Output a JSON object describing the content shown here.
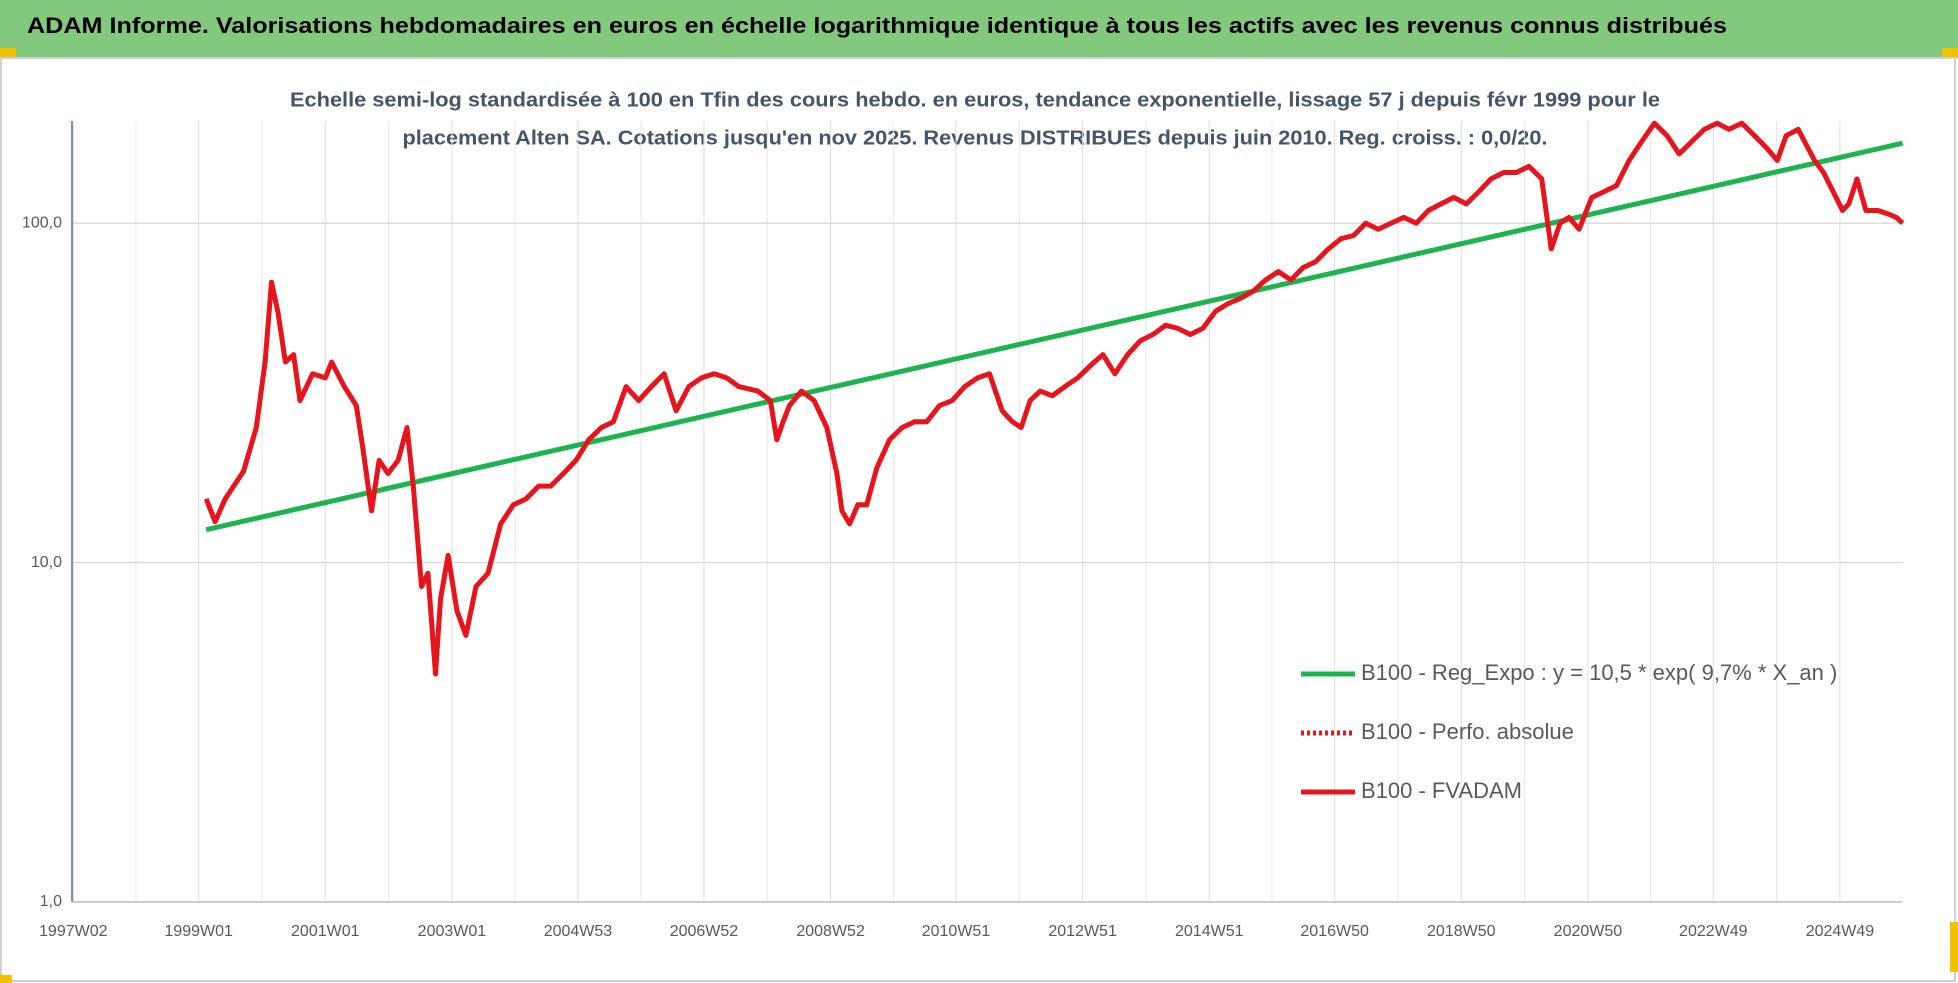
{
  "chart_data": {
    "type": "line",
    "title": "ADAM Informe. Valorisations hebdomadaires en euros en échelle logarithmique identique à tous les actifs avec les revenus connus distribués",
    "subtitle": [
      "Echelle semi-log standardisée à 100 en Tfin des cours hebdo. en euros, tendance exponentielle, lissage 57 j depuis févr 1999 pour le",
      "placement Alten SA.  Cotations jusqu'en nov 2025. Revenus DISTRIBUES depuis juin 2010. Reg. croiss. : 0,0/20."
    ],
    "log_y": true,
    "grid": true,
    "legend": "right",
    "xlim": [
      1997.0,
      2025.9
    ],
    "xticks": [
      {
        "value": 1997.02,
        "label": "1997W02"
      },
      {
        "value": 1999.0,
        "label": "1999W01"
      },
      {
        "value": 2001.0,
        "label": "2001W01"
      },
      {
        "value": 2003.0,
        "label": "2003W01"
      },
      {
        "value": 2004.99,
        "label": "2004W53"
      },
      {
        "value": 2006.98,
        "label": "2006W52"
      },
      {
        "value": 2008.98,
        "label": "2008W52"
      },
      {
        "value": 2010.96,
        "label": "2010W51"
      },
      {
        "value": 2012.96,
        "label": "2012W51"
      },
      {
        "value": 2014.96,
        "label": "2014W51"
      },
      {
        "value": 2016.94,
        "label": "2016W50"
      },
      {
        "value": 2018.94,
        "label": "2018W50"
      },
      {
        "value": 2020.94,
        "label": "2020W50"
      },
      {
        "value": 2022.92,
        "label": "2022W49"
      },
      {
        "value": 2024.92,
        "label": "2024W49"
      }
    ],
    "ylim": [
      1,
      200
    ],
    "yticks": [
      {
        "value": 1,
        "label": "1,0"
      },
      {
        "value": 10,
        "label": "10,0"
      },
      {
        "value": 100,
        "label": "100,0"
      }
    ],
    "series": [
      {
        "name": "B100 - Reg_Expo : y = 10,5 * exp( 9,7% *  X_an )",
        "color": "#1db34f",
        "x": [
          1999.12,
          2025.91
        ],
        "values": [
          12.5,
          172
        ]
      },
      {
        "name": "B100 - Perfo. absolue",
        "color": "#e8141b",
        "dash": true
      },
      {
        "name": "B100 - FVADAM",
        "color": "#e8141b",
        "x": [
          1999.12,
          1999.26,
          1999.42,
          1999.71,
          1999.91,
          2000.05,
          2000.15,
          2000.25,
          2000.37,
          2000.5,
          2000.6,
          2000.8,
          2001.0,
          2001.1,
          2001.3,
          2001.49,
          2001.59,
          2001.73,
          2001.85,
          2001.99,
          2002.15,
          2002.29,
          2002.39,
          2002.52,
          2002.62,
          2002.74,
          2002.82,
          2002.94,
          2003.08,
          2003.22,
          2003.38,
          2003.57,
          2003.77,
          2003.97,
          2004.17,
          2004.37,
          2004.56,
          2004.76,
          2004.96,
          2005.16,
          2005.36,
          2005.55,
          2005.75,
          2005.95,
          2006.15,
          2006.35,
          2006.54,
          2006.74,
          2006.94,
          2007.14,
          2007.34,
          2007.53,
          2007.83,
          2008.03,
          2008.13,
          2008.23,
          2008.33,
          2008.52,
          2008.72,
          2008.92,
          2009.08,
          2009.16,
          2009.28,
          2009.41,
          2009.55,
          2009.71,
          2009.91,
          2010.11,
          2010.31,
          2010.5,
          2010.7,
          2010.9,
          2011.1,
          2011.3,
          2011.49,
          2011.69,
          2011.85,
          2011.99,
          2012.13,
          2012.29,
          2012.48,
          2012.68,
          2012.88,
          2013.08,
          2013.28,
          2013.47,
          2013.67,
          2013.87,
          2014.07,
          2014.27,
          2014.46,
          2014.66,
          2014.86,
          2015.06,
          2015.26,
          2015.45,
          2015.65,
          2015.85,
          2016.05,
          2016.25,
          2016.44,
          2016.64,
          2016.84,
          2017.04,
          2017.24,
          2017.43,
          2017.63,
          2017.83,
          2018.03,
          2018.23,
          2018.42,
          2018.62,
          2018.82,
          2019.02,
          2019.22,
          2019.41,
          2019.61,
          2019.81,
          2020.01,
          2020.21,
          2020.36,
          2020.5,
          2020.64,
          2020.8,
          2021.0,
          2021.2,
          2021.39,
          2021.59,
          2021.79,
          2021.99,
          2022.19,
          2022.38,
          2022.58,
          2022.78,
          2022.98,
          2023.17,
          2023.37,
          2023.57,
          2023.77,
          2023.93,
          2024.07,
          2024.26,
          2024.36,
          2024.52,
          2024.66,
          2024.86,
          2024.96,
          2025.06,
          2025.19,
          2025.33,
          2025.52,
          2025.71,
          2025.81,
          2025.91
        ],
        "values": [
          15.4,
          13.2,
          15.4,
          18.6,
          25,
          39,
          67,
          55,
          39,
          41,
          30,
          36,
          35,
          39,
          33,
          29,
          22,
          14.2,
          20,
          18.3,
          20,
          25,
          16.8,
          8.5,
          9.3,
          4.7,
          7.8,
          10.5,
          7.2,
          6.1,
          8.5,
          9.3,
          13,
          14.8,
          15.4,
          16.8,
          16.8,
          18.3,
          20,
          23,
          25,
          26,
          33,
          30,
          33,
          36,
          28,
          33,
          35,
          36,
          35,
          33,
          32,
          30,
          23,
          26,
          29,
          32,
          30,
          25,
          18.3,
          14.2,
          13,
          14.8,
          14.8,
          19,
          23,
          25,
          26,
          26,
          29,
          30,
          33,
          35,
          36,
          28,
          26,
          25,
          30,
          32,
          31,
          33,
          35,
          38,
          41,
          36,
          41,
          45,
          47,
          50,
          49,
          47,
          49,
          55,
          58,
          60,
          63,
          68,
          72,
          68,
          74,
          77,
          84,
          90,
          92,
          100,
          96,
          100,
          104,
          100,
          109,
          114,
          119,
          114,
          124,
          135,
          141,
          141,
          147,
          135,
          84,
          100,
          104,
          96,
          119,
          124,
          129,
          153,
          174,
          197,
          181,
          160,
          174,
          189,
          197,
          189,
          197,
          181,
          166,
          153,
          181,
          189,
          174,
          153,
          141,
          119,
          109,
          114,
          135,
          109,
          109,
          106,
          104,
          100
        ]
      }
    ]
  }
}
